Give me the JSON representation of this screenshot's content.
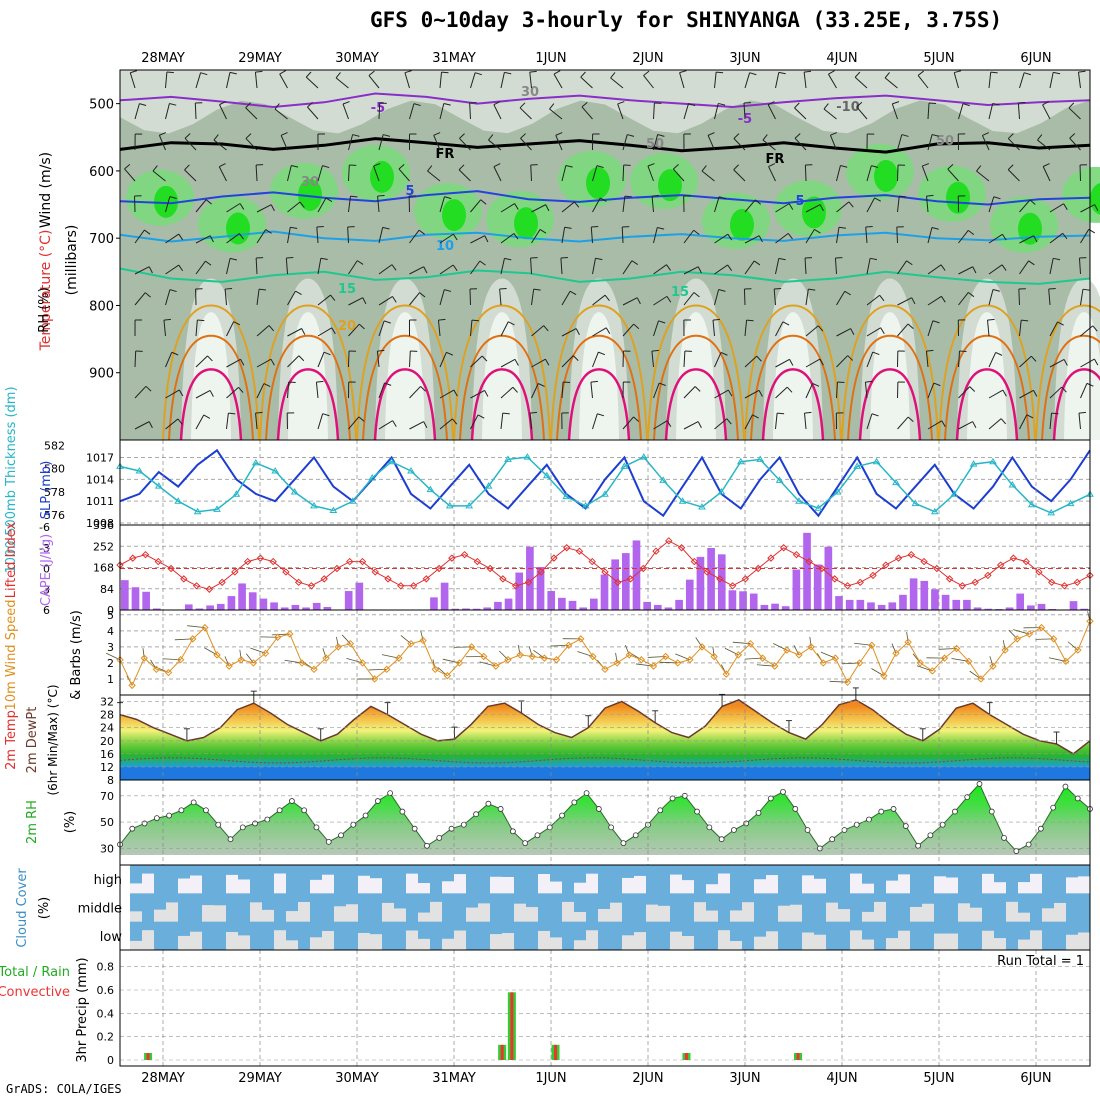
{
  "title": "GFS 0~10day 3-hourly for SHINYANGA (33.25E, 3.75S)",
  "credit": "GrADS: COLA/IGES",
  "colors": {
    "rh_light": "#d2dcd2",
    "rh_mid": "#a8bca8",
    "rh_dark": "#8ea88e",
    "rh_green": "#7ed87e",
    "rh_bright": "#22dd22",
    "t_m5": "#8a2ec8",
    "t_fr": "#000000",
    "t_5": "#2244dd",
    "t_10": "#1ea0e6",
    "t_15": "#1ec890",
    "t_20": "#e0a020",
    "t_25": "#e07010",
    "t_30": "#e0107a",
    "slp": "#1d3ed0",
    "thickness": "#26b6c8",
    "lifted": "#e03030",
    "cape": "#b266ee",
    "wind10": "#e09020",
    "temp_fill": "#f08020",
    "dew_band": "#22bb22",
    "rh2m": "#22cc22",
    "cloud": "#6aaedc",
    "cloud_clear": "#e2e2e2",
    "precip_total": "#33cc33",
    "precip_conv": "#ee3333"
  },
  "chart_data": {
    "type": "meteogram",
    "dates": [
      "28MAY",
      "29MAY",
      "30MAY",
      "31MAY",
      "1JUN",
      "2JUN",
      "3JUN",
      "4JUN",
      "5JUN",
      "6JUN"
    ],
    "panels": [
      {
        "id": "upper",
        "labels": [
          "Wind (m/s)",
          "Temperature (°C)",
          "RH (%)",
          "(millibars)"
        ],
        "y_ticks": [
          500,
          600,
          700,
          800,
          900
        ],
        "ylim": [
          1000,
          450
        ],
        "contour_labels": [
          "-5",
          "-5",
          "-10",
          "FR",
          "FR",
          "5",
          "5",
          "10",
          "15",
          "15",
          "20",
          "30",
          "30",
          "50",
          "50"
        ],
        "isotherms": [
          {
            "label": "-5",
            "p": [
              495,
              490,
              497,
              505,
              498,
              485,
              490,
              500,
              493,
              488,
              495,
              500,
              505,
              498,
              492,
              488,
              495,
              502,
              498,
              495
            ]
          },
          {
            "label": "FR",
            "p": [
              568,
              558,
              560,
              568,
              562,
              552,
              558,
              565,
              560,
              555,
              562,
              570,
              565,
              558,
              566,
              572,
              560,
              558,
              566,
              562
            ]
          },
          {
            "label": "5",
            "p": [
              645,
              648,
              638,
              632,
              640,
              645,
              636,
              630,
              642,
              646,
              640,
              636,
              642,
              648,
              640,
              636,
              645,
              650,
              642,
              640
            ]
          },
          {
            "label": "10",
            "p": [
              695,
              705,
              698,
              690,
              700,
              704,
              695,
              692,
              700,
              705,
              698,
              694,
              700,
              704,
              696,
              692,
              700,
              703,
              698,
              696
            ]
          },
          {
            "label": "15",
            "p": [
              745,
              760,
              765,
              755,
              750,
              762,
              758,
              748,
              752,
              765,
              760,
              750,
              755,
              765,
              760,
              750,
              758,
              765,
              768,
              760
            ]
          }
        ]
      },
      {
        "id": "slp",
        "labels": [
          "1000-500mb Thickness (dm)",
          "SLP (mb)"
        ],
        "left_ticks": [
          576,
          578,
          580,
          582
        ],
        "right_ticks": [
          1008,
          1011,
          1014,
          1017
        ],
        "slp": [
          1011,
          1012,
          1015,
          1013,
          1016,
          1018,
          1014,
          1012,
          1011,
          1014,
          1017,
          1013,
          1011,
          1014,
          1017,
          1012,
          1010,
          1013,
          1016,
          1012,
          1010,
          1013,
          1016,
          1012,
          1010,
          1014,
          1017,
          1011,
          1009,
          1013,
          1017,
          1012,
          1010,
          1014,
          1017,
          1012,
          1009,
          1013,
          1017,
          1012,
          1010,
          1013,
          1016,
          1012,
          1010,
          1013,
          1017,
          1013,
          1011,
          1014,
          1018
        ],
        "thickness": [
          580.2,
          579.8,
          578.5,
          577.2,
          576.3,
          576.5,
          577.8,
          580.5,
          579.8,
          578.0,
          576.8,
          576.4,
          577.2,
          579.2,
          580.6,
          579.8,
          578.2,
          576.8,
          576.8,
          578.5,
          580.8,
          581.0,
          579.4,
          577.6,
          576.8,
          577.8,
          580.2,
          581.0,
          579.0,
          577.2,
          576.7,
          578.0,
          580.6,
          580.8,
          579.0,
          577.2,
          576.6,
          578.0,
          580.2,
          580.6,
          578.8,
          577.0,
          576.3,
          577.8,
          580.4,
          580.6,
          578.6,
          576.9,
          576.2,
          577.0,
          577.8
        ]
      },
      {
        "id": "cape",
        "labels": [
          "Lifted Index",
          "CAPE (J/kg)"
        ],
        "left_ticks": [
          -6,
          -3,
          0,
          3,
          6
        ],
        "right_ticks": [
          0,
          84,
          168,
          252,
          336
        ],
        "lifted": [
          -0.5,
          -1.5,
          -2,
          -1,
          0,
          1.5,
          2.5,
          3,
          2,
          0.5,
          -1,
          -1.5,
          -1,
          0.5,
          2,
          2.5,
          1.5,
          0,
          -1,
          -1,
          0.5,
          1.5,
          2.5,
          2.5,
          1.5,
          0,
          -1.5,
          -2,
          -1,
          0,
          1.5,
          2.5,
          2,
          0.5,
          -1.5,
          -3,
          -2.5,
          -1,
          0.5,
          2,
          1.5,
          0,
          -2.5,
          -4,
          -3,
          -1,
          0.5,
          1.5,
          2.5,
          1.5,
          0,
          -1.5,
          -3,
          -2,
          -1,
          0,
          1.5,
          2.5,
          2,
          1,
          -0.5,
          -1.5,
          -2,
          -1,
          0,
          1.5,
          2.5,
          2,
          1,
          -0.5,
          -1.5,
          -1,
          0.5,
          2,
          2.5,
          2,
          1
        ],
        "cape": [
          118,
          90,
          72,
          6,
          0,
          0,
          22,
          6,
          18,
          24,
          55,
          105,
          70,
          45,
          30,
          10,
          20,
          10,
          28,
          12,
          0,
          75,
          108,
          0,
          0,
          0,
          0,
          0,
          0,
          50,
          108,
          5,
          6,
          5,
          10,
          32,
          45,
          148,
          250,
          170,
          75,
          48,
          36,
          10,
          45,
          140,
          200,
          225,
          275,
          32,
          20,
          10,
          40,
          120,
          210,
          245,
          220,
          78,
          74,
          65,
          20,
          25,
          15,
          160,
          305,
          180,
          250,
          55,
          40,
          40,
          30,
          20,
          30,
          60,
          125,
          115,
          82,
          60,
          40,
          40,
          10,
          5,
          4,
          10,
          65,
          18,
          24,
          4,
          0,
          35,
          5
        ]
      },
      {
        "id": "wind10",
        "labels": [
          "10m Wind Speed",
          "& Barbs (m/s)"
        ],
        "left_ticks": [
          1,
          2,
          3,
          4,
          5
        ],
        "speed": [
          2.2,
          0.6,
          2.3,
          1.6,
          1.4,
          2.2,
          3.5,
          4.2,
          2.5,
          1.8,
          2.2,
          2.0,
          2.6,
          3.6,
          3.8,
          2.0,
          1.6,
          2.3,
          3.0,
          3.2,
          2.0,
          1.0,
          1.6,
          2.3,
          3.2,
          3.4,
          1.6,
          1.2,
          2.0,
          3.0,
          2.4,
          1.8,
          2.2,
          2.5,
          2.4,
          2.3,
          2.2,
          3.1,
          3.5,
          2.4,
          1.6,
          2.0,
          2.5,
          2.2,
          1.8,
          2.4,
          2.0,
          2.2,
          3.0,
          2.4,
          1.3,
          2.5,
          3.2,
          2.3,
          1.8,
          2.8,
          2.5,
          3.0,
          2.0,
          2.3,
          0.8,
          2.0,
          3.1,
          1.2,
          2.6,
          3.3,
          2.0,
          1.5,
          2.3,
          2.9,
          2.1,
          1.0,
          1.8,
          2.8,
          3.5,
          3.8,
          4.2,
          3.5,
          2.1,
          2.8,
          4.6
        ]
      },
      {
        "id": "temp2m",
        "labels": [
          "2m Temp",
          "2m DewPt",
          "(6hr Min/Max) (°C)"
        ],
        "left_ticks": [
          8,
          12,
          16,
          20,
          24,
          28,
          32
        ],
        "temp": [
          28.0,
          26.5,
          24.0,
          22.0,
          20.0,
          21.0,
          24.0,
          29.5,
          31.5,
          28.5,
          25.0,
          22.5,
          20.0,
          22.0,
          26.5,
          30.5,
          28.0,
          25.0,
          22.0,
          20.0,
          20.5,
          25.0,
          30.5,
          31.5,
          28.5,
          25.0,
          22.5,
          21.0,
          24.0,
          30.0,
          32.0,
          29.0,
          25.5,
          22.5,
          21.0,
          24.5,
          30.5,
          32.5,
          29.0,
          25.5,
          22.5,
          20.5,
          25.0,
          31.0,
          32.5,
          29.5,
          25.5,
          22.0,
          20.0,
          23.5,
          30.0,
          31.5,
          28.0,
          25.0,
          22.0,
          20.0,
          19.0,
          16.0,
          20.0
        ]
      },
      {
        "id": "rh2m",
        "labels": [
          "2m RH",
          "(%)"
        ],
        "left_ticks": [
          30,
          50,
          70
        ],
        "rh": [
          33,
          45,
          49,
          53,
          55,
          59,
          65,
          59,
          48,
          37,
          46,
          49,
          52,
          59,
          66,
          59,
          46,
          35,
          40,
          48,
          55,
          66,
          72,
          58,
          45,
          32,
          38,
          45,
          48,
          56,
          64,
          60,
          43,
          34,
          40,
          46,
          55,
          65,
          72,
          60,
          46,
          34,
          40,
          48,
          59,
          68,
          70,
          58,
          46,
          37,
          44,
          49,
          57,
          68,
          73,
          60,
          44,
          30,
          37,
          44,
          48,
          52,
          58,
          60,
          47,
          32,
          40,
          48,
          58,
          69,
          79,
          58,
          38,
          28,
          33,
          45,
          61,
          77,
          68,
          60
        ]
      },
      {
        "id": "cloud",
        "labels": [
          "Cloud Cover",
          "(%)"
        ],
        "levels": [
          "high",
          "middle",
          "low"
        ]
      },
      {
        "id": "precip",
        "labels": [
          "Total / Rain",
          "Convective",
          "3hr Precip (mm)"
        ],
        "left_ticks": [
          0,
          0.2,
          0.4,
          0.6,
          0.8
        ],
        "run_total": "Run Total = 1",
        "bars": [
          {
            "x": 0.3,
            "total": 0.06
          },
          {
            "x": 3.95,
            "total": 0.13
          },
          {
            "x": 4.05,
            "total": 0.58
          },
          {
            "x": 4.5,
            "total": 0.13
          },
          {
            "x": 5.85,
            "total": 0.06
          },
          {
            "x": 7.0,
            "total": 0.06
          }
        ]
      }
    ]
  }
}
